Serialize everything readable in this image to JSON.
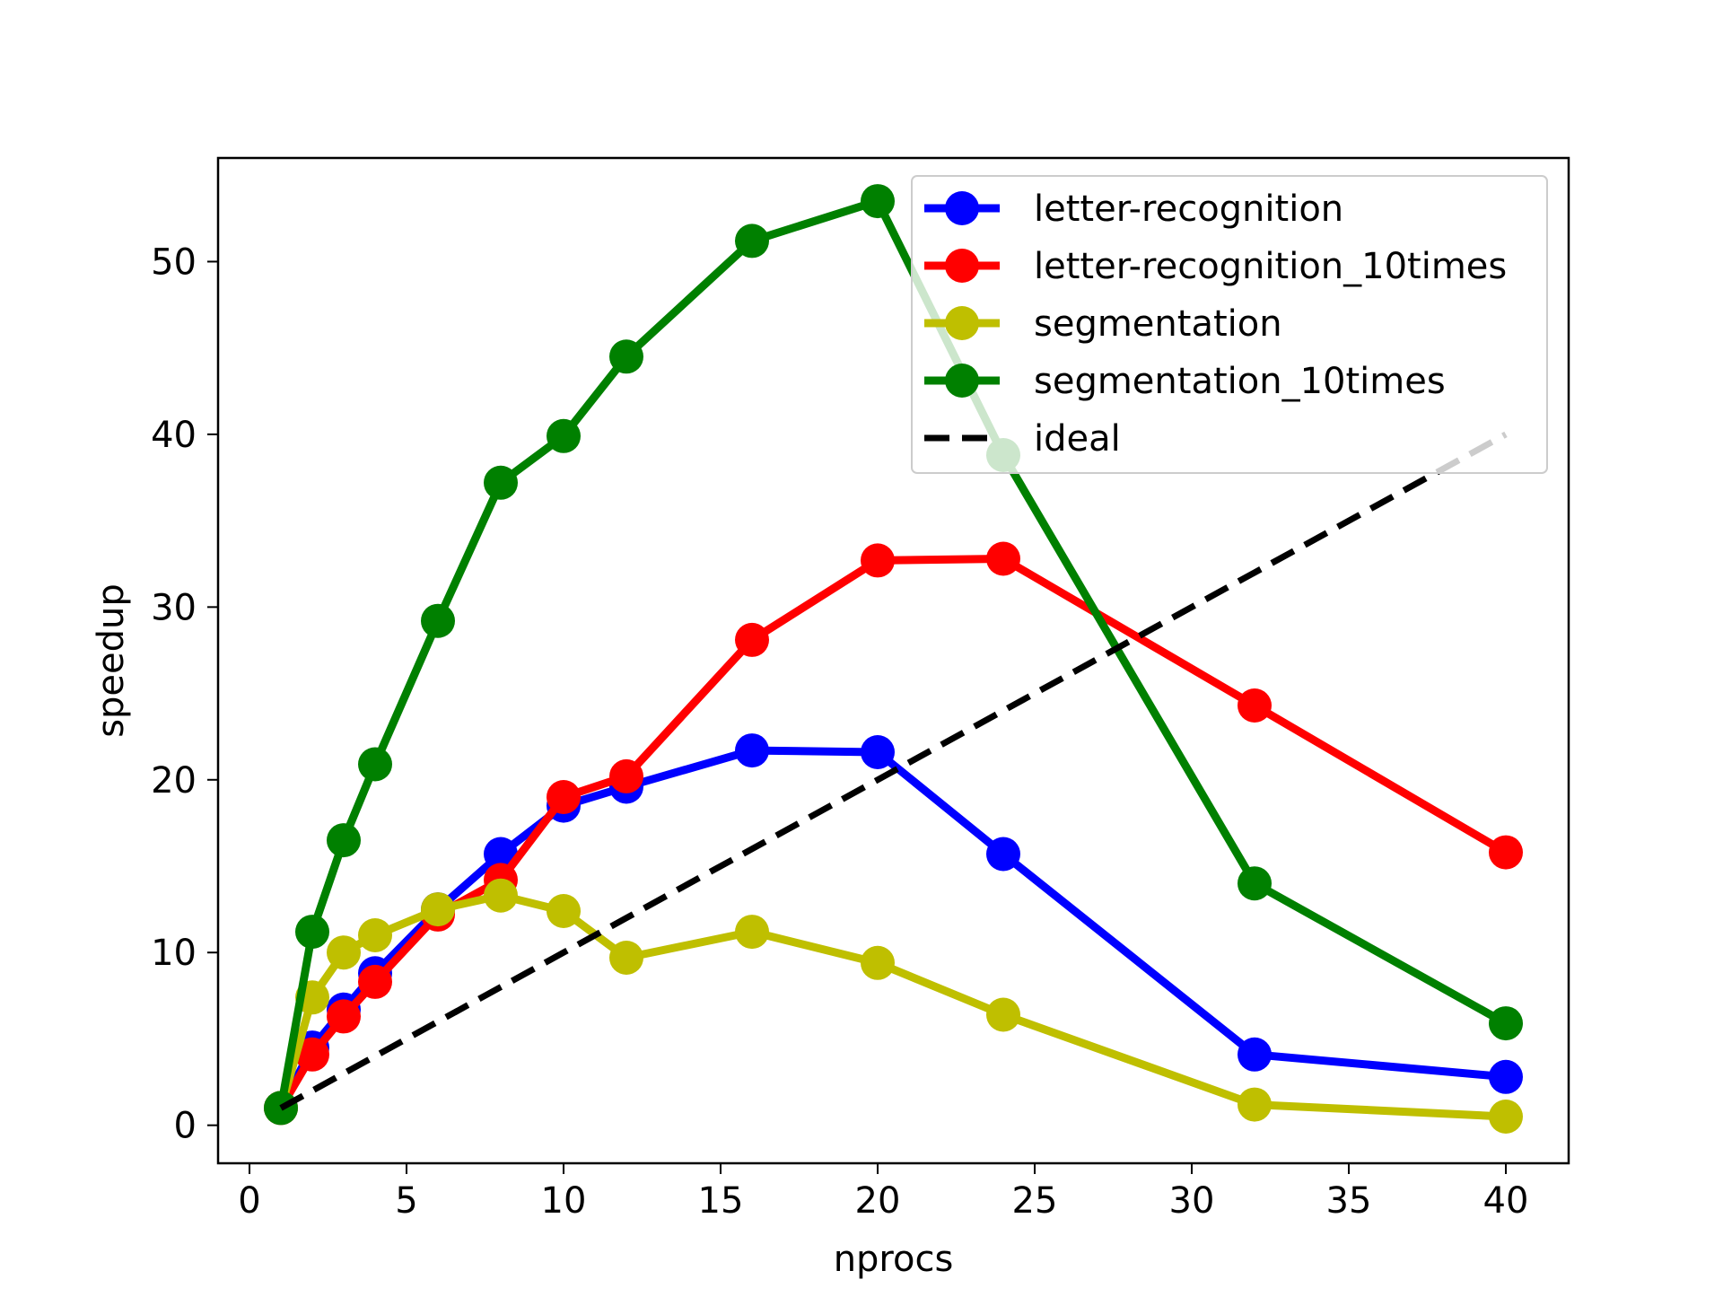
{
  "chart_data": {
    "type": "line",
    "title": "",
    "xlabel": "nprocs",
    "ylabel": "speedup",
    "xlim": [
      -1,
      42
    ],
    "ylim": [
      -2.2,
      56
    ],
    "xticks": [
      0,
      5,
      10,
      15,
      20,
      25,
      30,
      35,
      40
    ],
    "yticks": [
      0,
      10,
      20,
      30,
      40,
      50
    ],
    "grid": false,
    "legend_position": "top-right",
    "x": [
      1,
      2,
      3,
      4,
      6,
      8,
      10,
      12,
      16,
      20,
      24,
      32,
      40
    ],
    "series": [
      {
        "name": "letter-recognition",
        "color": "#0000ff",
        "marker": "circle",
        "values": [
          1,
          4.5,
          6.7,
          8.8,
          12.5,
          15.7,
          18.5,
          19.6,
          21.7,
          21.6,
          15.7,
          4.1,
          2.8
        ]
      },
      {
        "name": "letter-recognition_10times",
        "color": "#ff0000",
        "marker": "circle",
        "values": [
          1,
          4.1,
          6.3,
          8.3,
          12.2,
          14.2,
          19.0,
          20.2,
          28.1,
          32.7,
          32.8,
          24.3,
          15.8
        ]
      },
      {
        "name": "segmentation",
        "color": "#bfbf00",
        "marker": "circle",
        "values": [
          1,
          7.4,
          10.0,
          11.0,
          12.5,
          13.3,
          12.4,
          9.7,
          11.2,
          9.4,
          6.4,
          1.2,
          0.5
        ]
      },
      {
        "name": "segmentation_10times",
        "color": "#008000",
        "marker": "circle",
        "values": [
          1,
          11.2,
          16.5,
          20.9,
          29.2,
          37.2,
          39.9,
          44.5,
          51.2,
          53.5,
          38.8,
          14.0,
          5.9
        ]
      },
      {
        "name": "ideal",
        "color": "#000000",
        "marker": "none",
        "dashed": true,
        "values": [
          1,
          2,
          3,
          4,
          6,
          8,
          10,
          12,
          16,
          20,
          24,
          32,
          40
        ]
      }
    ]
  }
}
